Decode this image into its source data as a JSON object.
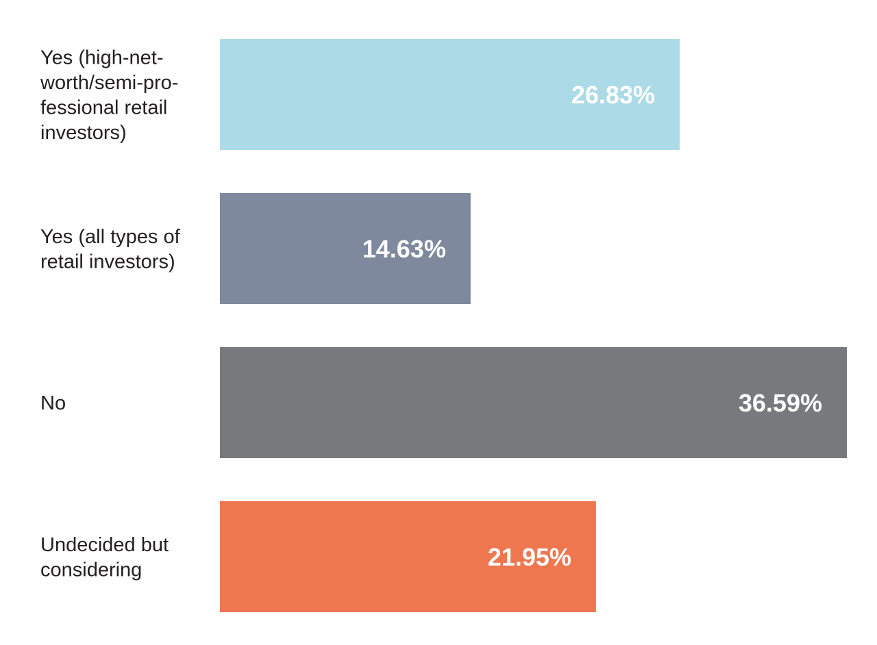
{
  "chart_data": {
    "type": "bar",
    "orientation": "horizontal",
    "categories": [
      [
        "Yes (high-net-",
        "worth/semi-pro-",
        "fessional retail",
        "investors)"
      ],
      [
        "Yes (all types of",
        "retail investors)"
      ],
      [
        "No"
      ],
      [
        "Undecided but",
        "considering"
      ]
    ],
    "values": [
      26.83,
      14.63,
      36.59,
      21.95
    ],
    "value_labels": [
      "26.83%",
      "14.63%",
      "36.59%",
      "21.95%"
    ],
    "colors": [
      "#acdae7",
      "#7f899e",
      "#78797d",
      "#ee7750"
    ],
    "title": "",
    "xlabel": "",
    "ylabel": "",
    "grid": false,
    "legend": "none",
    "data_labels": "inside-end"
  }
}
